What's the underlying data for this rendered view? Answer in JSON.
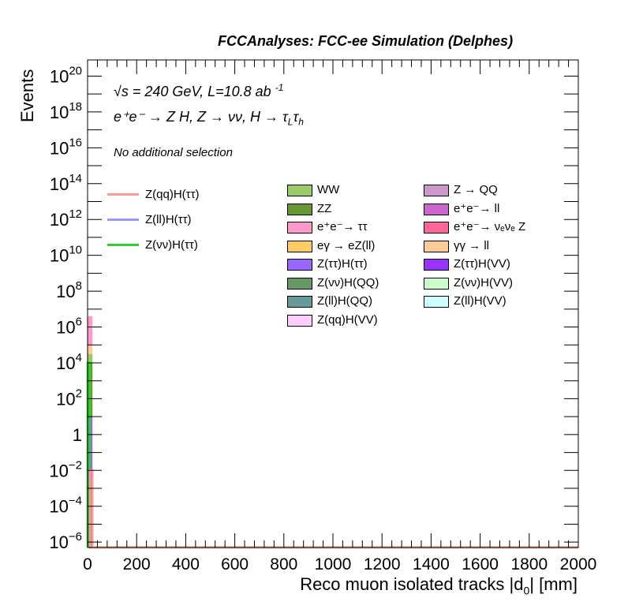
{
  "header": {
    "title": "FCCAnalyses: FCC-ee Simulation (Delphes)"
  },
  "annotations": {
    "energy_line": "√s = 240 GeV, L=10.8 ab",
    "energy_sup": "-1",
    "process_line": "e⁺e⁻ → Z H, Z → νν, H → τ",
    "process_sub1": "L",
    "process_tau": "τ",
    "process_sub2": "h",
    "selection": "No additional selection"
  },
  "axes": {
    "xlabel_main": "Reco muon isolated tracks |d",
    "xlabel_sub": "0",
    "xlabel_tail": "| [mm]",
    "ylabel": "Events"
  },
  "legend": {
    "lines": [
      {
        "label": "Z(qq)H(ττ)",
        "color": "#ff9999"
      },
      {
        "label": "Z(ll)H(ττ)",
        "color": "#9999ff"
      },
      {
        "label": "Z(νν)H(ττ)",
        "color": "#33cc33"
      }
    ],
    "col1": [
      {
        "label": "WW",
        "color": "#99cc66"
      },
      {
        "label": "ZZ",
        "color": "#669933"
      },
      {
        "label": "e⁺e⁻→ ττ",
        "color": "#ff99cc"
      },
      {
        "label": "eγ → eZ(ll)",
        "color": "#ffcc66"
      },
      {
        "label": "Z(ττ)H(ττ)",
        "color": "#9966ff"
      },
      {
        "label": "Z(νν)H(QQ)",
        "color": "#669966"
      },
      {
        "label": "Z(ll)H(QQ)",
        "color": "#669999"
      },
      {
        "label": "Z(qq)H(VV)",
        "color": "#ffccff"
      }
    ],
    "col2": [
      {
        "label": "Z → QQ",
        "color": "#cc99cc"
      },
      {
        "label": "e⁺e⁻→ ll",
        "color": "#cc66cc"
      },
      {
        "label": "e⁺e⁻→ νₑνₑ Z",
        "color": "#ff6699"
      },
      {
        "label": "γγ → ll",
        "color": "#ffcc99"
      },
      {
        "label": "Z(ττ)H(VV)",
        "color": "#9933ff"
      },
      {
        "label": "Z(νν)H(VV)",
        "color": "#ccffcc"
      },
      {
        "label": "Z(ll)H(VV)",
        "color": "#ccffff"
      }
    ]
  },
  "chart_data": {
    "type": "bar",
    "title": "FCCAnalyses: FCC-ee Simulation (Delphes)",
    "xlabel": "Reco muon isolated tracks |d0| [mm]",
    "ylabel": "Events",
    "xlim": [
      0,
      2000
    ],
    "ylim_log10": [
      -6.3,
      20.9
    ],
    "log_y": true,
    "x_ticks": [
      "0",
      "200",
      "400",
      "600",
      "800",
      "1000",
      "1200",
      "1400",
      "1600",
      "1800",
      "2000"
    ],
    "x_tick_values": [
      0,
      200,
      400,
      600,
      800,
      1000,
      1200,
      1400,
      1600,
      1800,
      2000
    ],
    "y_ticks": [
      {
        "exp": -6,
        "label": "10",
        "sup": "−6"
      },
      {
        "exp": -4,
        "label": "10",
        "sup": "−4"
      },
      {
        "exp": -2,
        "label": "10",
        "sup": "−2"
      },
      {
        "exp": 0,
        "label": "1",
        "sup": ""
      },
      {
        "exp": 2,
        "label": "10",
        "sup": "2"
      },
      {
        "exp": 4,
        "label": "10",
        "sup": "4"
      },
      {
        "exp": 6,
        "label": "10",
        "sup": "6"
      },
      {
        "exp": 8,
        "label": "10",
        "sup": "8"
      },
      {
        "exp": 10,
        "label": "10",
        "sup": "10"
      },
      {
        "exp": 12,
        "label": "10",
        "sup": "12"
      },
      {
        "exp": 14,
        "label": "10",
        "sup": "14"
      },
      {
        "exp": 16,
        "label": "10",
        "sup": "16"
      },
      {
        "exp": 18,
        "label": "10",
        "sup": "18"
      },
      {
        "exp": 20,
        "label": "10",
        "sup": "20"
      }
    ],
    "stack_bin": {
      "x_range": [
        0,
        20
      ],
      "segments": [
        {
          "color": "#669966",
          "log_bottom": -6.3,
          "log_top": -2.5
        },
        {
          "color": "#9966ff",
          "log_bottom": -2.5,
          "log_top": 1.0
        },
        {
          "color": "#669933",
          "log_bottom": 1.0,
          "log_top": 4.0
        },
        {
          "color": "#99cc66",
          "log_bottom": 4.0,
          "log_top": 4.5
        },
        {
          "color": "#ffcc99",
          "log_bottom": 4.5,
          "log_top": 5.0
        },
        {
          "color": "#ff99cc",
          "log_bottom": 5.0,
          "log_top": 6.6
        }
      ]
    },
    "signal_lines": [
      {
        "name": "Z(νν)H(ττ)",
        "color": "#33cc33",
        "bin_x": [
          0,
          10
        ],
        "log_value": 4.0
      },
      {
        "name": "Z(qq)H(ττ)",
        "color": "#ff9999",
        "bin_x": [
          10,
          20
        ],
        "log_value": -2.0
      }
    ],
    "grid": false,
    "legend_position": "top"
  }
}
